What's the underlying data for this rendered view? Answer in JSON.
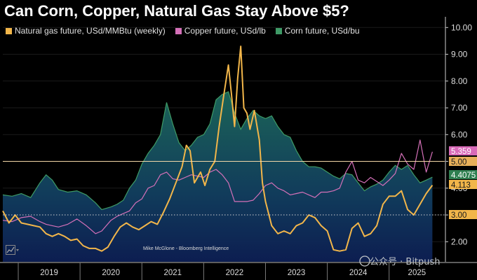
{
  "title": "Can Corn, Copper, Natural Gas Stay Above $5?",
  "legend": [
    {
      "label": "Natural gas future, USd/MMBtu (weekly)",
      "color": "#f2b64a"
    },
    {
      "label": "Copper future, USd/lb",
      "color": "#d470b8"
    },
    {
      "label": "Corn future, USd/bu",
      "color": "#3e9a66"
    }
  ],
  "attribution": "Mike McGlone - Bloomberg Intelligence",
  "watermark": "公众号 · Bitpush",
  "tags": [
    {
      "label": "5.359",
      "value": 5.359,
      "color": "#d86ab8",
      "text_color": "#ffffff"
    },
    {
      "label": "5.00",
      "value": 5.0,
      "color": "#e8b05a",
      "text_color": "#1a1a1a"
    },
    {
      "label": "4.4075",
      "value": 4.4075,
      "color": "#2f7f50",
      "text_color": "#ffffff"
    },
    {
      "label": "4.113",
      "value": 4.113,
      "color": "#f2b64a",
      "text_color": "#1a1a1a"
    },
    {
      "label": "3.00",
      "value": 3.0,
      "color": "#f2b64a",
      "text_color": "#1a1a1a"
    }
  ],
  "chart_data": {
    "type": "line",
    "title": "Can Corn, Copper, Natural Gas Stay Above $5?",
    "ylim": [
      1.25,
      10.4
    ],
    "yticks": [
      2.0,
      3.0,
      4.0,
      5.0,
      6.0,
      7.0,
      8.0,
      9.0,
      10.0
    ],
    "ytick_labels": [
      "2.00",
      "3.00",
      "4.00",
      "5.00",
      "6.00",
      "7.00",
      "8.00",
      "9.00",
      "10.00"
    ],
    "xlim": [
      2018.75,
      2025.9
    ],
    "xtick_labels": [
      "2019",
      "2020",
      "2021",
      "2022",
      "2023",
      "2024",
      "2025"
    ],
    "x_year_starts": [
      2019,
      2020,
      2021,
      2022,
      2023,
      2024,
      2025
    ],
    "reference_lines": [
      {
        "value": 5.0,
        "style": "solid"
      },
      {
        "value": 3.0,
        "style": "dotted"
      }
    ],
    "series": [
      {
        "name": "Corn future, USd/bu",
        "color": "#3e9a66",
        "kind": "area",
        "x": [
          2018.75,
          2018.9,
          2019.05,
          2019.2,
          2019.35,
          2019.45,
          2019.55,
          2019.65,
          2019.8,
          2019.95,
          2020.1,
          2020.25,
          2020.35,
          2020.5,
          2020.6,
          2020.7,
          2020.8,
          2020.9,
          2021.0,
          2021.1,
          2021.2,
          2021.3,
          2021.4,
          2021.5,
          2021.6,
          2021.7,
          2021.8,
          2021.9,
          2022.0,
          2022.1,
          2022.2,
          2022.3,
          2022.4,
          2022.5,
          2022.6,
          2022.7,
          2022.8,
          2022.9,
          2023.0,
          2023.1,
          2023.2,
          2023.3,
          2023.4,
          2023.5,
          2023.6,
          2023.7,
          2023.8,
          2023.9,
          2024.0,
          2024.1,
          2024.2,
          2024.3,
          2024.4,
          2024.5,
          2024.6,
          2024.7,
          2024.8,
          2024.9,
          2025.0,
          2025.1,
          2025.2,
          2025.3,
          2025.4,
          2025.5,
          2025.6,
          2025.7
        ],
        "values": [
          3.75,
          3.7,
          3.8,
          3.65,
          4.2,
          4.5,
          4.3,
          3.95,
          3.85,
          3.9,
          3.75,
          3.45,
          3.2,
          3.3,
          3.4,
          3.55,
          4.0,
          4.3,
          4.9,
          5.3,
          5.6,
          6.0,
          7.2,
          6.4,
          5.7,
          5.4,
          5.6,
          5.9,
          6.0,
          6.4,
          7.3,
          7.5,
          7.6,
          6.8,
          6.2,
          6.6,
          6.9,
          6.7,
          6.6,
          6.7,
          6.3,
          6.0,
          5.9,
          5.4,
          5.0,
          4.8,
          4.8,
          4.75,
          4.6,
          4.45,
          4.35,
          4.55,
          4.5,
          4.2,
          3.9,
          4.05,
          4.15,
          4.3,
          4.6,
          4.85,
          4.7,
          4.85,
          4.5,
          4.2,
          4.3,
          4.41
        ]
      },
      {
        "name": "Copper future, USd/lb",
        "color": "#d470b8",
        "kind": "line",
        "x": [
          2018.75,
          2018.9,
          2019.05,
          2019.2,
          2019.35,
          2019.45,
          2019.55,
          2019.65,
          2019.8,
          2019.95,
          2020.1,
          2020.25,
          2020.35,
          2020.5,
          2020.6,
          2020.7,
          2020.8,
          2020.9,
          2021.0,
          2021.1,
          2021.2,
          2021.3,
          2021.4,
          2021.5,
          2021.6,
          2021.7,
          2021.8,
          2021.9,
          2022.0,
          2022.1,
          2022.2,
          2022.3,
          2022.4,
          2022.5,
          2022.6,
          2022.7,
          2022.8,
          2022.9,
          2023.0,
          2023.1,
          2023.2,
          2023.3,
          2023.4,
          2023.5,
          2023.6,
          2023.7,
          2023.8,
          2023.9,
          2024.0,
          2024.1,
          2024.2,
          2024.3,
          2024.4,
          2024.5,
          2024.6,
          2024.7,
          2024.8,
          2024.9,
          2025.0,
          2025.1,
          2025.2,
          2025.3,
          2025.4,
          2025.5,
          2025.6,
          2025.7
        ],
        "values": [
          2.8,
          2.75,
          2.9,
          2.95,
          2.75,
          2.65,
          2.6,
          2.55,
          2.65,
          2.85,
          2.6,
          2.3,
          2.4,
          2.8,
          2.95,
          3.05,
          3.15,
          3.45,
          3.6,
          4.0,
          4.1,
          4.5,
          4.6,
          4.35,
          4.3,
          4.4,
          4.5,
          4.45,
          4.4,
          4.6,
          4.7,
          4.5,
          4.2,
          3.5,
          3.5,
          3.5,
          3.55,
          3.8,
          4.1,
          4.2,
          4.0,
          3.9,
          3.75,
          3.8,
          3.85,
          3.75,
          3.65,
          3.85,
          3.85,
          3.9,
          4.0,
          4.6,
          5.0,
          4.3,
          4.2,
          4.4,
          4.25,
          4.1,
          4.3,
          4.55,
          5.3,
          4.9,
          4.7,
          5.8,
          4.6,
          5.36
        ]
      },
      {
        "name": "Natural gas future, USd/MMBtu (weekly)",
        "color": "#f2b64a",
        "kind": "line",
        "x": [
          2018.75,
          2018.85,
          2018.95,
          2019.05,
          2019.15,
          2019.25,
          2019.35,
          2019.45,
          2019.55,
          2019.65,
          2019.75,
          2019.85,
          2019.95,
          2020.05,
          2020.15,
          2020.25,
          2020.35,
          2020.45,
          2020.55,
          2020.65,
          2020.75,
          2020.85,
          2020.95,
          2021.05,
          2021.15,
          2021.25,
          2021.35,
          2021.45,
          2021.55,
          2021.65,
          2021.72,
          2021.78,
          2021.85,
          2021.95,
          2022.02,
          2022.1,
          2022.18,
          2022.25,
          2022.32,
          2022.4,
          2022.45,
          2022.5,
          2022.55,
          2022.6,
          2022.65,
          2022.7,
          2022.75,
          2022.82,
          2022.9,
          2022.95,
          2023.0,
          2023.1,
          2023.2,
          2023.3,
          2023.4,
          2023.5,
          2023.6,
          2023.7,
          2023.8,
          2023.9,
          2024.0,
          2024.1,
          2024.2,
          2024.3,
          2024.4,
          2024.5,
          2024.6,
          2024.7,
          2024.8,
          2024.9,
          2025.0,
          2025.1,
          2025.2,
          2025.3,
          2025.4,
          2025.5,
          2025.6,
          2025.7
        ],
        "values": [
          3.15,
          2.7,
          3.0,
          2.7,
          2.65,
          2.6,
          2.55,
          2.3,
          2.2,
          2.3,
          2.2,
          2.05,
          2.1,
          1.85,
          1.75,
          1.75,
          1.65,
          1.8,
          2.2,
          2.55,
          2.7,
          2.55,
          2.45,
          2.6,
          2.75,
          2.65,
          3.1,
          3.6,
          4.2,
          4.8,
          5.6,
          5.4,
          4.2,
          4.6,
          4.1,
          4.7,
          5.0,
          6.3,
          7.4,
          8.6,
          7.5,
          6.3,
          8.1,
          9.3,
          7.0,
          6.8,
          6.2,
          6.9,
          5.8,
          4.2,
          3.5,
          2.6,
          2.3,
          2.4,
          2.3,
          2.6,
          2.7,
          3.0,
          2.9,
          2.6,
          2.4,
          1.7,
          1.65,
          1.7,
          2.5,
          2.7,
          2.2,
          2.3,
          2.6,
          3.4,
          3.7,
          3.7,
          3.9,
          3.2,
          3.0,
          3.4,
          3.8,
          4.11
        ]
      }
    ]
  }
}
